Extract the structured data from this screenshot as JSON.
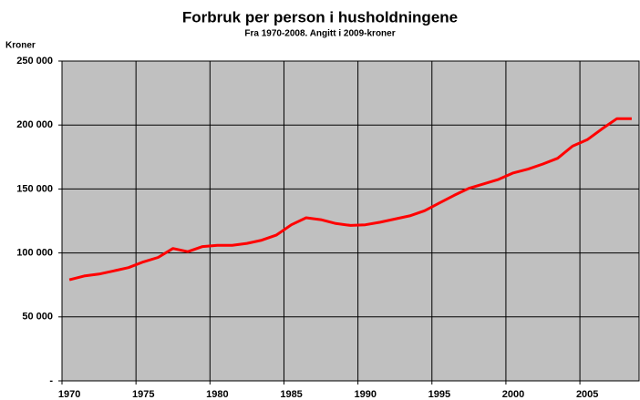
{
  "chart_data": {
    "type": "line",
    "title": "Forbruk per person i husholdningene",
    "subtitle": "Fra 1970-2008. Angitt i 2009-kroner",
    "y_label": "Kroner",
    "categories": [
      "1970",
      null,
      null,
      null,
      null,
      "1975",
      null,
      null,
      null,
      null,
      "1980",
      null,
      null,
      null,
      null,
      "1985",
      null,
      null,
      null,
      null,
      "1990",
      null,
      null,
      null,
      null,
      "1995",
      null,
      null,
      null,
      null,
      "2000",
      null,
      null,
      null,
      null,
      "2005",
      null,
      null,
      null
    ],
    "series": [
      {
        "name": "Forbruk per person",
        "color": "#ff0000",
        "values": [
          79000,
          82000,
          83500,
          86000,
          88500,
          93000,
          96500,
          103500,
          101000,
          105000,
          106000,
          106000,
          107500,
          110000,
          114000,
          122000,
          127500,
          126000,
          123000,
          121500,
          122000,
          124000,
          126500,
          129000,
          133000,
          139000,
          145000,
          150500,
          154000,
          157500,
          162500,
          165500,
          169500,
          174000,
          183500,
          188500,
          197000,
          205000,
          205000
        ]
      }
    ],
    "ylim": [
      0,
      250000
    ],
    "yticks": [
      {
        "value": 0,
        "label": "-"
      },
      {
        "value": 50000,
        "label": "50 000"
      },
      {
        "value": 100000,
        "label": "100 000"
      },
      {
        "value": 150000,
        "label": "150 000"
      },
      {
        "value": 200000,
        "label": "200 000"
      },
      {
        "value": 250000,
        "label": "250 000"
      }
    ],
    "grid": true,
    "plot_background": "#c0c0c0"
  }
}
